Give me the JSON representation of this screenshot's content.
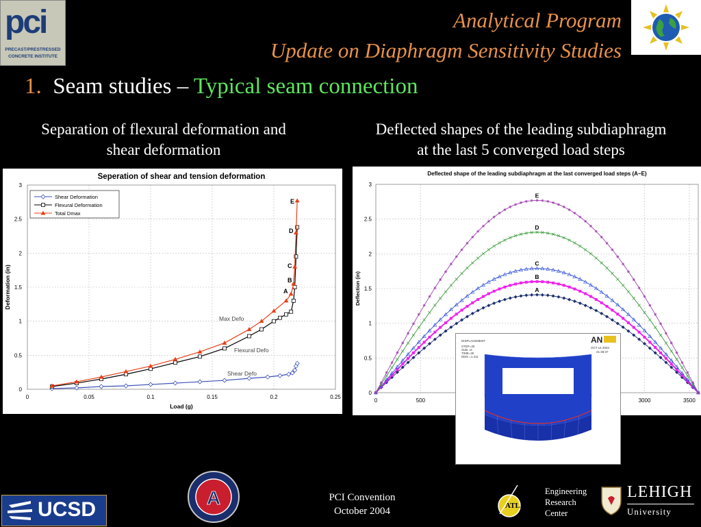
{
  "header": {
    "title_line1": "Analytical Program",
    "title_line2": "Update on Diaphragm Sensitivity Studies"
  },
  "subtitle": {
    "number": "1.",
    "lead": "Seam studies –",
    "accent": "Typical seam connection"
  },
  "captions": {
    "left_line1": "Separation of flexural deformation and",
    "left_line2": "shear deformation",
    "right_line1": "Deflected shapes of the leading subdiaphragm",
    "right_line2": "at the last 5 converged load steps"
  },
  "logos": {
    "pci": "pci",
    "pci_sub1": "PRECAST/PRESTRESSED",
    "pci_sub2": "CONCRETE INSTITUTE",
    "ucsd": "UCSD",
    "atlss": "ATLSS",
    "lehigh": "LEHIGH",
    "lehigh_sub": "University",
    "center_line1": "Engineering",
    "center_line2": "Research",
    "center_line3": "Center"
  },
  "footer": {
    "line1": "PCI Convention",
    "line2": "October 2004"
  },
  "colors": {
    "accent_orange": "#e8914a",
    "accent_green": "#5ee65e"
  },
  "chart_data": [
    {
      "type": "line",
      "title": "Seperation of shear and tension deformation",
      "xlabel": "Load (g)",
      "ylabel": "Deformation (in)",
      "xlim": [
        0,
        0.25
      ],
      "ylim": [
        0,
        3
      ],
      "xticks": [
        "0",
        "0.05",
        "0.1",
        "0.15",
        "0.2",
        "0.25"
      ],
      "yticks": [
        "0",
        "0.5",
        "1",
        "1.5",
        "2",
        "2.5",
        "3"
      ],
      "grid": true,
      "legend": "top-left",
      "series": [
        {
          "name": "Shear Deformation",
          "color": "#3b4fb8",
          "x": [
            0.02,
            0.04,
            0.06,
            0.08,
            0.1,
            0.12,
            0.14,
            0.16,
            0.18,
            0.195,
            0.205,
            0.212,
            0.215,
            0.217,
            0.218,
            0.219
          ],
          "y": [
            0.01,
            0.02,
            0.04,
            0.05,
            0.07,
            0.09,
            0.11,
            0.13,
            0.16,
            0.18,
            0.2,
            0.22,
            0.24,
            0.28,
            0.34,
            0.38
          ]
        },
        {
          "name": "Flexural Deformation",
          "color": "#000000",
          "x": [
            0.02,
            0.04,
            0.06,
            0.08,
            0.1,
            0.12,
            0.14,
            0.16,
            0.18,
            0.19,
            0.2,
            0.205,
            0.21,
            0.214,
            0.216,
            0.217,
            0.218,
            0.219
          ],
          "y": [
            0.04,
            0.09,
            0.15,
            0.22,
            0.3,
            0.39,
            0.48,
            0.6,
            0.78,
            0.88,
            1.0,
            1.05,
            1.1,
            1.14,
            1.3,
            1.5,
            1.95,
            2.38
          ]
        },
        {
          "name": "Total Dmax",
          "color": "#e8401a",
          "x": [
            0.02,
            0.04,
            0.06,
            0.08,
            0.1,
            0.12,
            0.14,
            0.16,
            0.18,
            0.19,
            0.2,
            0.21,
            0.214,
            0.216,
            0.217,
            0.218,
            0.219
          ],
          "y": [
            0.05,
            0.11,
            0.18,
            0.26,
            0.34,
            0.44,
            0.55,
            0.68,
            0.88,
            1.0,
            1.15,
            1.3,
            1.4,
            1.55,
            1.8,
            2.3,
            2.77
          ]
        }
      ],
      "annotations": [
        "E",
        "D",
        "C",
        "B",
        "A",
        "Max Defo",
        "Flexural Defo",
        "Shear Defo"
      ]
    },
    {
      "type": "line",
      "title": "Deflected shape of the leading subdiaphragm at the last converged load steps (A~E)",
      "xlabel": "",
      "ylabel": "Deflection (in)",
      "xlim": [
        0,
        3600
      ],
      "ylim": [
        0,
        3
      ],
      "xticks": [
        "0",
        "500",
        "3000",
        "3500"
      ],
      "yticks": [
        "0",
        "0.5",
        "1",
        "1.5",
        "2",
        "2.5",
        "3"
      ],
      "grid": true,
      "span": 3600,
      "series": [
        {
          "name": "A",
          "color": "#1a2e6e",
          "peak": 1.41
        },
        {
          "name": "B",
          "color": "#ee22ee",
          "peak": 1.6
        },
        {
          "name": "C",
          "color": "#2b4ed8",
          "peak": 1.79
        },
        {
          "name": "D",
          "color": "#3a9a3a",
          "peak": 2.31
        },
        {
          "name": "E",
          "color": "#a040b0",
          "peak": 2.77
        }
      ]
    }
  ],
  "inset": {
    "label_line1": "DISPLACEMENT",
    "label_line2": "STEP=30",
    "label_line3": "SUB =6",
    "label_line4": "TIME=30",
    "label_line5": "DMX =1.411",
    "brand": "AN",
    "date_line1": "OCT 14 2004",
    "date_line2": "21:38:37"
  }
}
